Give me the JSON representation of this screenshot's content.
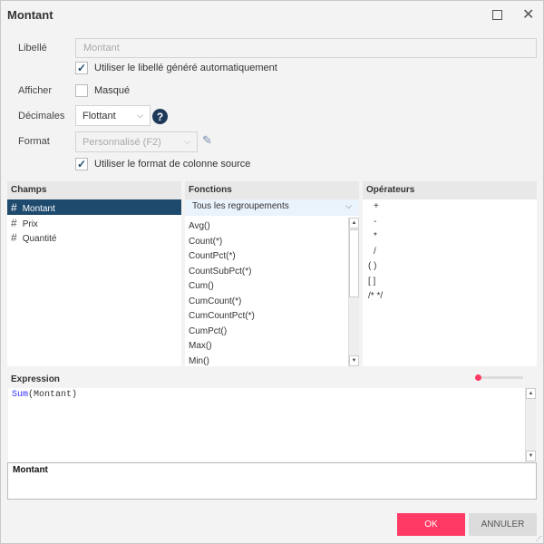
{
  "dialog": {
    "title": "Montant"
  },
  "form": {
    "label_label": "Libellé",
    "label_value": "Montant",
    "auto_label_text": "Utiliser le libellé généré automatiquement",
    "auto_label_checked": true,
    "show_label": "Afficher",
    "hidden_text": "Masqué",
    "hidden_checked": false,
    "decimals_label": "Décimales",
    "decimals_value": "Flottant",
    "format_label": "Format",
    "format_value": "Personnalisé (F2)",
    "source_format_text": "Utiliser le format de colonne source",
    "source_format_checked": true
  },
  "fields": {
    "header": "Champs",
    "items": [
      "Montant",
      "Prix",
      "Quantité"
    ],
    "selected": "Montant"
  },
  "functions": {
    "header": "Fonctions",
    "filter": "Tous les regroupements",
    "items": [
      "Avg()",
      "Count(*)",
      "CountPct(*)",
      "CountSubPct(*)",
      "Cum()",
      "CumCount(*)",
      "CumCountPct(*)",
      "CumPct()",
      "Max()",
      "Min()"
    ]
  },
  "operators": {
    "header": "Opérateurs",
    "items": [
      "+",
      "-",
      "*",
      "/",
      "( )",
      "[ ]",
      "/* */"
    ]
  },
  "expression": {
    "label": "Expression",
    "func": "Sum",
    "args": "(Montant)",
    "slider": 0
  },
  "preview": {
    "text": "Montant"
  },
  "buttons": {
    "ok": "OK",
    "cancel": "ANNULER"
  },
  "colors": {
    "accent": "#ff3a64",
    "selected": "#1e4a6e",
    "help": "#1e3a5a"
  }
}
